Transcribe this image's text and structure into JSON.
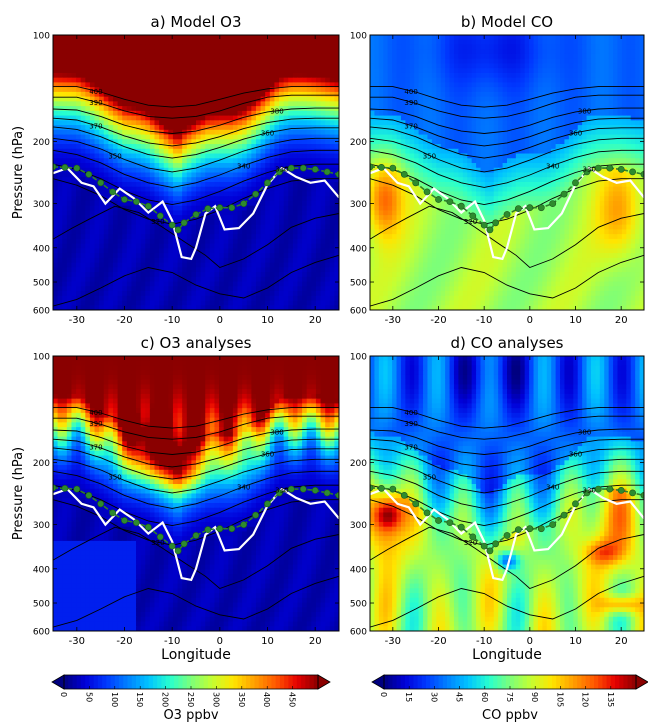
{
  "colors": {
    "o3_palette": [
      "#00007f",
      "#0000d8",
      "#0038ff",
      "#0080ff",
      "#00c4ff",
      "#28ffce",
      "#7cff79",
      "#c4ff32",
      "#ffe500",
      "#ff9f00",
      "#ff5900",
      "#e60000",
      "#8a0000"
    ],
    "co_palette": [
      "#00007f",
      "#0000d8",
      "#0038ff",
      "#0080ff",
      "#00c4ff",
      "#28ffce",
      "#7cff79",
      "#c4ff32",
      "#ffe500",
      "#ff9f00",
      "#ff5900",
      "#e60000",
      "#8a0000"
    ],
    "isentrope_color": "#000000",
    "tropopause_color": "#ffffff",
    "dynamic_tropopause_color": "#2e7d2e"
  },
  "axes": {
    "ylabel": "Pressure (hPa)",
    "xlabel": "Longitude",
    "x_ticks": [
      "-30",
      "-20",
      "-10",
      "0",
      "10",
      "20"
    ],
    "y_ticks": [
      "100",
      "200",
      "300",
      "400",
      "500",
      "600"
    ]
  },
  "chart_data": [
    {
      "type": "heatmap",
      "title": "a) Model O3",
      "field": "o3",
      "xlim": [
        -35,
        25
      ],
      "ylim": [
        600,
        100
      ],
      "yscale": "log",
      "isentrope_labels": [
        "400",
        "390",
        "380",
        "370",
        "360",
        "350",
        "340",
        "330",
        "320"
      ]
    },
    {
      "type": "heatmap",
      "title": "b) Model CO",
      "field": "co",
      "xlim": [
        -35,
        25
      ],
      "ylim": [
        600,
        100
      ],
      "yscale": "log",
      "isentrope_labels": [
        "400",
        "390",
        "380",
        "370",
        "360",
        "350",
        "340",
        "330",
        "320"
      ]
    },
    {
      "type": "heatmap",
      "title": "c) O3 analyses",
      "field": "o3",
      "xlim": [
        -35,
        25
      ],
      "ylim": [
        600,
        100
      ],
      "yscale": "log",
      "isentrope_labels": [
        "400",
        "390",
        "380",
        "370",
        "360",
        "350",
        "340",
        "330",
        "320"
      ]
    },
    {
      "type": "heatmap",
      "title": "d) CO analyses",
      "field": "co",
      "xlim": [
        -35,
        25
      ],
      "ylim": [
        600,
        100
      ],
      "yscale": "log",
      "isentrope_labels": [
        "400",
        "390",
        "380",
        "370",
        "360",
        "350",
        "340",
        "330",
        "320"
      ]
    }
  ],
  "isentropes": [
    {
      "theta": "400",
      "p": [
        140,
        140,
        145,
        152,
        158,
        160,
        158,
        152,
        146,
        142,
        140,
        140,
        140
      ]
    },
    {
      "theta": "390",
      "p": [
        150,
        150,
        156,
        164,
        170,
        172,
        170,
        164,
        156,
        150,
        148,
        148,
        148
      ]
    },
    {
      "theta": "380",
      "p": [
        162,
        163,
        170,
        180,
        187,
        190,
        187,
        180,
        171,
        165,
        162,
        161,
        161
      ]
    },
    {
      "theta": "370",
      "p": [
        172,
        174,
        182,
        193,
        202,
        206,
        202,
        194,
        184,
        177,
        173,
        172,
        172
      ]
    },
    {
      "theta": "360",
      "p": [
        182,
        185,
        194,
        207,
        218,
        223,
        218,
        208,
        197,
        189,
        184,
        183,
        183
      ]
    },
    {
      "theta": "350",
      "p": [
        196,
        200,
        210,
        225,
        238,
        244,
        238,
        226,
        213,
        204,
        198,
        196,
        196
      ]
    },
    {
      "theta": "340",
      "p": [
        212,
        218,
        230,
        248,
        262,
        270,
        262,
        249,
        234,
        222,
        214,
        212,
        212
      ]
    },
    {
      "theta": "330",
      "p": [
        232,
        240,
        255,
        276,
        293,
        302,
        293,
        277,
        259,
        245,
        235,
        232,
        232
      ]
    },
    {
      "theta": "320",
      "p": [
        255,
        266,
        285,
        312,
        332,
        343,
        332,
        313,
        290,
        272,
        259,
        255,
        255
      ]
    }
  ],
  "dynamic_tropopause": {
    "x": [
      -35,
      -32.5,
      -30,
      -27.5,
      -25,
      -22.5,
      -20,
      -17.5,
      -15,
      -12.5,
      -10,
      -8.75,
      -7.5,
      -5,
      -2.5,
      0,
      2.5,
      5,
      7.5,
      10,
      12.5,
      15,
      17.5,
      20,
      22.5,
      25
    ],
    "p": [
      236,
      237,
      238,
      248,
      262,
      278,
      292,
      296,
      305,
      325,
      345,
      356,
      340,
      322,
      310,
      308,
      308,
      300,
      282,
      262,
      244,
      238,
      238,
      240,
      244,
      248
    ]
  },
  "thermal_tropopause": {
    "x": [
      -35,
      -32,
      -29,
      -26.5,
      -24,
      -21,
      -18,
      -15,
      -12,
      -10,
      -8,
      -6,
      -5,
      -3,
      -1,
      1,
      4,
      7,
      10,
      13,
      16,
      19,
      22,
      25
    ],
    "p": [
      246,
      238,
      262,
      268,
      300,
      272,
      290,
      318,
      296,
      335,
      425,
      430,
      400,
      320,
      305,
      355,
      352,
      320,
      265,
      238,
      252,
      262,
      258,
      288
    ]
  },
  "extra_contours": [
    {
      "x": [
        -35,
        -31,
        -27,
        -22,
        -17,
        -12,
        -7,
        -3,
        0,
        5,
        10,
        15,
        20,
        25
      ],
      "p": [
        378,
        352,
        330,
        305,
        318,
        350,
        388,
        420,
        455,
        430,
        392,
        350,
        330,
        320
      ]
    },
    {
      "x": [
        -35,
        -30,
        -25,
        -20,
        -15,
        -10,
        -5,
        0,
        5,
        10,
        15,
        20,
        25
      ],
      "p": [
        585,
        560,
        520,
        480,
        455,
        470,
        510,
        540,
        555,
        520,
        470,
        440,
        420
      ]
    }
  ],
  "colorbars": [
    {
      "label": "O3 ppbv",
      "min": 0,
      "max": 500,
      "tick_labels": [
        "0",
        "50",
        "100",
        "150",
        "200",
        "250",
        "300",
        "350",
        "400",
        "450"
      ],
      "tick_values": [
        0,
        50,
        100,
        150,
        200,
        250,
        300,
        350,
        400,
        450
      ]
    },
    {
      "label": "CO ppbv",
      "min": 0,
      "max": 150,
      "tick_labels": [
        "0",
        "15",
        "30",
        "45",
        "60",
        "75",
        "90",
        "105",
        "120",
        "135"
      ],
      "tick_values": [
        0,
        15,
        30,
        45,
        60,
        75,
        90,
        105,
        120,
        135
      ]
    }
  ]
}
